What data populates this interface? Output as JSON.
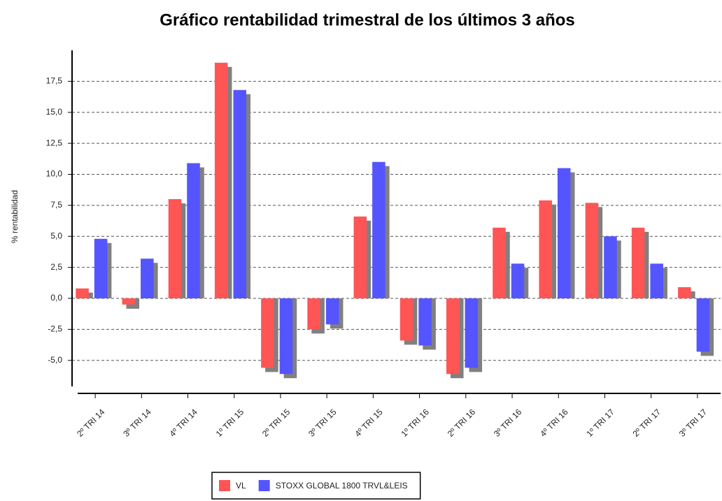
{
  "chart_data": {
    "type": "bar",
    "title": "Gráfico rentabilidad trimestral de los últimos 3 años",
    "y_label": "% rentabilidad",
    "categories": [
      "2º TRI 14",
      "3º TRI 14",
      "4º TRI 14",
      "1º TRI 15",
      "2º TRI 15",
      "3º TRI 15",
      "4º TRI 15",
      "1º TRI 16",
      "2º TRI 16",
      "3º TRI 16",
      "4º TRI 16",
      "1º TRI 17",
      "2º TRI 17",
      "3º TRI 17"
    ],
    "series": [
      {
        "name": "VL",
        "color": "#ff5555",
        "values": [
          0.8,
          -0.5,
          8.0,
          19.0,
          -5.6,
          -2.5,
          6.6,
          -3.4,
          -6.1,
          5.7,
          7.9,
          7.7,
          5.7,
          0.9
        ]
      },
      {
        "name": "STOXX GLOBAL 1800 TRVL&LEIS",
        "color": "#5555ff",
        "values": [
          4.8,
          3.2,
          10.9,
          16.8,
          -6.1,
          -2.1,
          11.0,
          -3.8,
          -5.6,
          2.8,
          10.5,
          5.0,
          2.8,
          -4.3
        ]
      }
    ],
    "ylim": [
      -7.1,
      20.0
    ],
    "yticks": [
      {
        "value": -5,
        "label": "-5,0"
      },
      {
        "value": -2.5,
        "label": "-2,5"
      },
      {
        "value": 0,
        "label": "0,0"
      },
      {
        "value": 2.5,
        "label": "2,5"
      },
      {
        "value": 5,
        "label": "5,0"
      },
      {
        "value": 7.5,
        "label": "7,5"
      },
      {
        "value": 10,
        "label": "10,0"
      },
      {
        "value": 12.5,
        "label": "12,5"
      },
      {
        "value": 15,
        "label": "15,0"
      },
      {
        "value": 17.5,
        "label": "17,5"
      }
    ],
    "grid": true,
    "legend": "bottom"
  }
}
